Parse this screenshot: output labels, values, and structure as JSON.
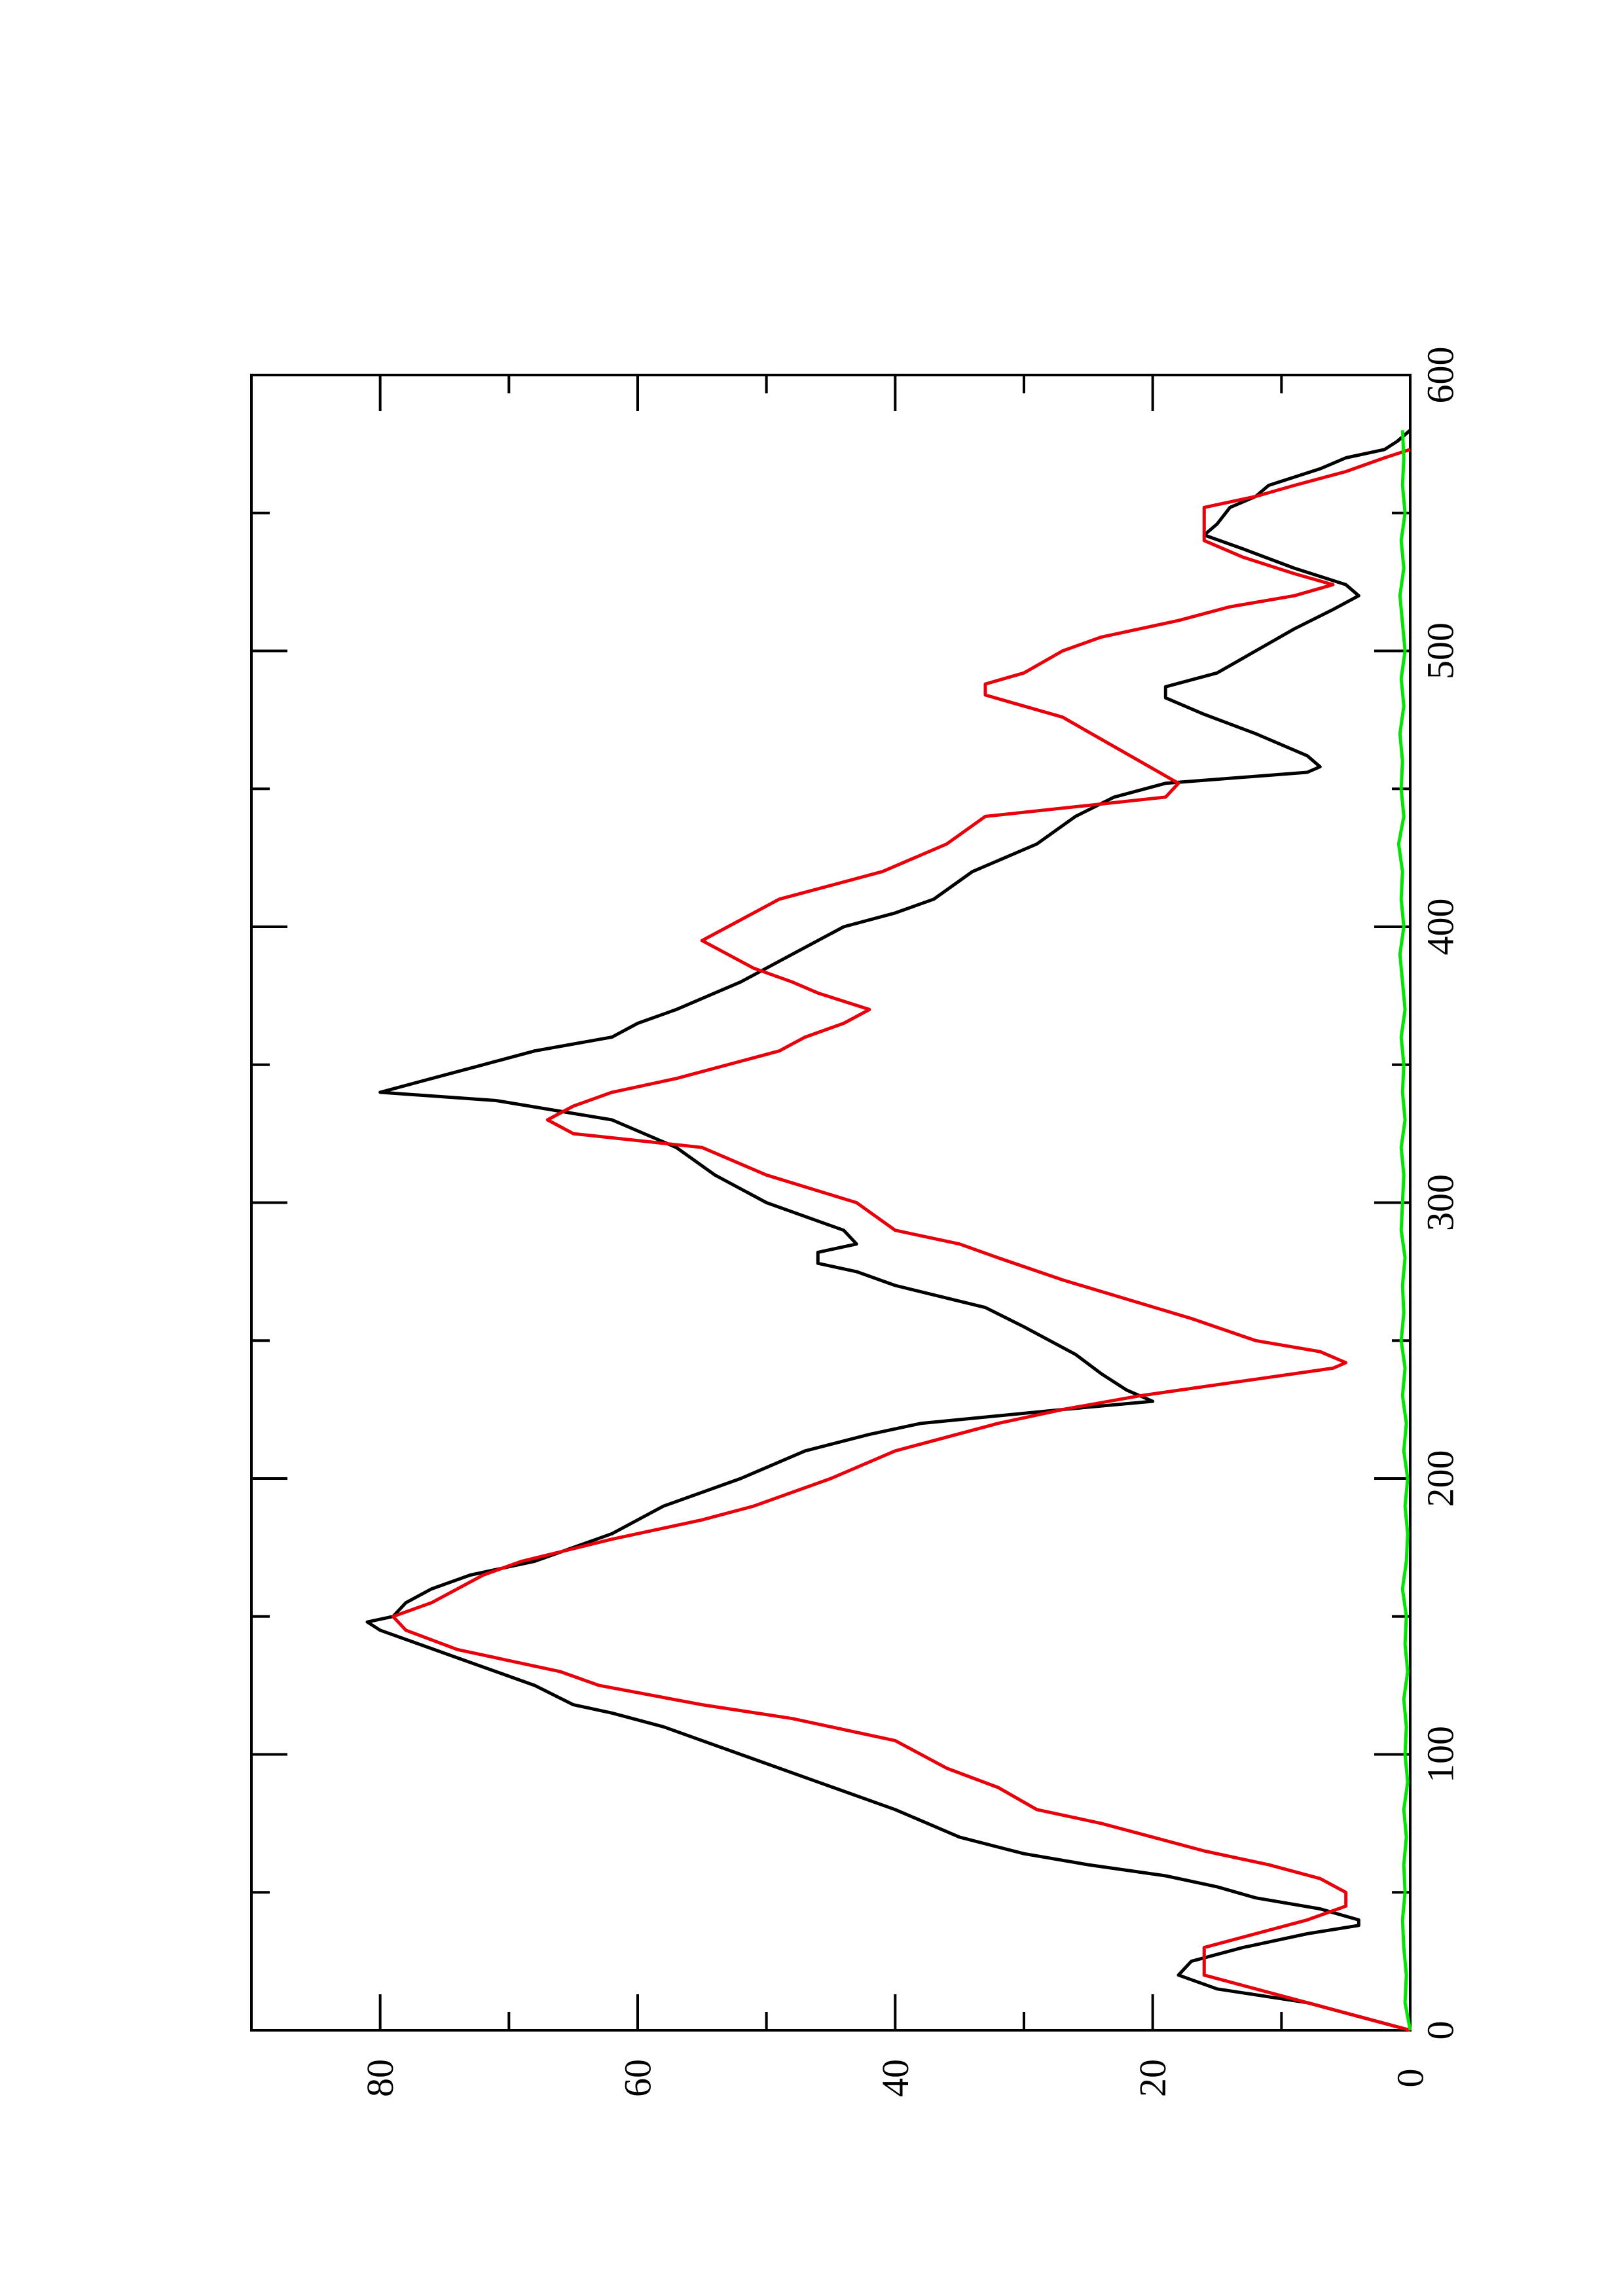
{
  "chart_data": {
    "type": "line",
    "orientation": "rotated 90° counter-clockwise (x axis runs bottom-to-top, y axis runs right-to-left)",
    "title": "",
    "xlabel": "",
    "ylabel": "",
    "xlim": [
      0,
      600
    ],
    "ylim": [
      0,
      90
    ],
    "x_ticks": [
      "0",
      "100",
      "200",
      "300",
      "400",
      "500",
      "600"
    ],
    "y_ticks": [
      "0",
      "20",
      "40",
      "60",
      "80"
    ],
    "grid": false,
    "legend": "none",
    "series": [
      {
        "color": "#000000",
        "style": "solid",
        "points": [
          [
            0,
            0
          ],
          [
            5,
            4
          ],
          [
            10,
            8
          ],
          [
            15,
            15
          ],
          [
            20,
            18
          ],
          [
            25,
            17
          ],
          [
            30,
            13
          ],
          [
            35,
            8
          ],
          [
            38,
            4
          ],
          [
            40,
            4
          ],
          [
            44,
            7
          ],
          [
            48,
            12
          ],
          [
            52,
            15
          ],
          [
            56,
            19
          ],
          [
            60,
            25
          ],
          [
            64,
            30
          ],
          [
            70,
            35
          ],
          [
            80,
            40
          ],
          [
            90,
            46
          ],
          [
            100,
            52
          ],
          [
            110,
            58
          ],
          [
            115,
            62
          ],
          [
            118,
            65
          ],
          [
            125,
            68
          ],
          [
            135,
            74
          ],
          [
            140,
            77
          ],
          [
            145,
            80
          ],
          [
            148,
            81
          ],
          [
            150,
            79
          ],
          [
            155,
            78
          ],
          [
            160,
            76
          ],
          [
            165,
            73
          ],
          [
            170,
            68
          ],
          [
            175,
            65
          ],
          [
            180,
            62
          ],
          [
            190,
            58
          ],
          [
            200,
            52
          ],
          [
            210,
            47
          ],
          [
            216,
            42
          ],
          [
            220,
            38
          ],
          [
            225,
            27
          ],
          [
            228,
            20
          ],
          [
            232,
            22
          ],
          [
            238,
            24
          ],
          [
            245,
            26
          ],
          [
            255,
            30
          ],
          [
            262,
            33
          ],
          [
            270,
            40
          ],
          [
            275,
            43
          ],
          [
            278,
            46
          ],
          [
            282,
            46
          ],
          [
            285,
            43
          ],
          [
            290,
            44
          ],
          [
            300,
            50
          ],
          [
            310,
            54
          ],
          [
            320,
            57
          ],
          [
            330,
            62
          ],
          [
            337,
            71
          ],
          [
            340,
            80
          ],
          [
            345,
            76
          ],
          [
            350,
            72
          ],
          [
            355,
            68
          ],
          [
            360,
            62
          ],
          [
            365,
            60
          ],
          [
            370,
            57
          ],
          [
            380,
            52
          ],
          [
            390,
            48
          ],
          [
            400,
            44
          ],
          [
            405,
            40
          ],
          [
            410,
            37
          ],
          [
            420,
            34
          ],
          [
            430,
            29
          ],
          [
            440,
            26
          ],
          [
            447,
            23
          ],
          [
            452,
            19
          ],
          [
            456,
            8
          ],
          [
            458,
            7
          ],
          [
            462,
            8
          ],
          [
            470,
            12
          ],
          [
            477,
            16
          ],
          [
            483,
            19
          ],
          [
            487,
            19
          ],
          [
            492,
            15
          ],
          [
            500,
            12
          ],
          [
            508,
            9
          ],
          [
            515,
            6
          ],
          [
            520,
            4
          ],
          [
            524,
            5
          ],
          [
            530,
            9
          ],
          [
            537,
            13
          ],
          [
            542,
            16
          ],
          [
            546,
            15
          ],
          [
            552,
            14
          ],
          [
            556,
            12
          ],
          [
            560,
            11
          ],
          [
            566,
            7
          ],
          [
            570,
            5
          ],
          [
            573,
            2
          ],
          [
            576,
            1
          ],
          [
            580,
            0
          ]
        ]
      },
      {
        "color": "#e8000b",
        "style": "solid",
        "points": [
          [
            0,
            0
          ],
          [
            5,
            4
          ],
          [
            10,
            8
          ],
          [
            15,
            12
          ],
          [
            20,
            16
          ],
          [
            25,
            16
          ],
          [
            30,
            16
          ],
          [
            35,
            12
          ],
          [
            40,
            8
          ],
          [
            45,
            5
          ],
          [
            50,
            5
          ],
          [
            55,
            7
          ],
          [
            60,
            11
          ],
          [
            65,
            16
          ],
          [
            70,
            20
          ],
          [
            75,
            24
          ],
          [
            80,
            29
          ],
          [
            88,
            32
          ],
          [
            95,
            36
          ],
          [
            105,
            40
          ],
          [
            113,
            48
          ],
          [
            118,
            55
          ],
          [
            125,
            63
          ],
          [
            130,
            66
          ],
          [
            138,
            74
          ],
          [
            145,
            78
          ],
          [
            150,
            79
          ],
          [
            155,
            76
          ],
          [
            165,
            72
          ],
          [
            170,
            69
          ],
          [
            178,
            62
          ],
          [
            185,
            55
          ],
          [
            190,
            51
          ],
          [
            200,
            45
          ],
          [
            210,
            40
          ],
          [
            220,
            32
          ],
          [
            225,
            27
          ],
          [
            230,
            21
          ],
          [
            236,
            12
          ],
          [
            240,
            6
          ],
          [
            242,
            5
          ],
          [
            246,
            7
          ],
          [
            250,
            12
          ],
          [
            258,
            17
          ],
          [
            265,
            22
          ],
          [
            272,
            27
          ],
          [
            280,
            32
          ],
          [
            285,
            35
          ],
          [
            290,
            40
          ],
          [
            300,
            43
          ],
          [
            310,
            50
          ],
          [
            320,
            55
          ],
          [
            325,
            65
          ],
          [
            330,
            67
          ],
          [
            335,
            65
          ],
          [
            340,
            62
          ],
          [
            345,
            57
          ],
          [
            355,
            49
          ],
          [
            360,
            47
          ],
          [
            365,
            44
          ],
          [
            370,
            42
          ],
          [
            376,
            46
          ],
          [
            380,
            48
          ],
          [
            385,
            51
          ],
          [
            395,
            55
          ],
          [
            400,
            53
          ],
          [
            410,
            49
          ],
          [
            415,
            45
          ],
          [
            420,
            41
          ],
          [
            430,
            36
          ],
          [
            440,
            33
          ],
          [
            447,
            19
          ],
          [
            452,
            18
          ],
          [
            460,
            21
          ],
          [
            468,
            24
          ],
          [
            476,
            27
          ],
          [
            484,
            33
          ],
          [
            488,
            33
          ],
          [
            492,
            30
          ],
          [
            500,
            27
          ],
          [
            505,
            24
          ],
          [
            511,
            18
          ],
          [
            516,
            14
          ],
          [
            520,
            9
          ],
          [
            524,
            6
          ],
          [
            528,
            9
          ],
          [
            534,
            13
          ],
          [
            540,
            16
          ],
          [
            546,
            16
          ],
          [
            552,
            16
          ],
          [
            556,
            12
          ],
          [
            560,
            9
          ],
          [
            565,
            5
          ],
          [
            570,
            2
          ],
          [
            573,
            0
          ]
        ]
      },
      {
        "color": "#00e600",
        "style": "solid",
        "points": [
          [
            0,
            0
          ],
          [
            10,
            0.4
          ],
          [
            20,
            0.3
          ],
          [
            30,
            0.5
          ],
          [
            40,
            0.6
          ],
          [
            50,
            0.4
          ],
          [
            60,
            0.5
          ],
          [
            70,
            0.3
          ],
          [
            80,
            0.5
          ],
          [
            90,
            0.2
          ],
          [
            100,
            0.4
          ],
          [
            110,
            0.3
          ],
          [
            120,
            0.5
          ],
          [
            130,
            0.2
          ],
          [
            140,
            0.4
          ],
          [
            150,
            0.3
          ],
          [
            160,
            0.6
          ],
          [
            170,
            0.3
          ],
          [
            180,
            0.2
          ],
          [
            190,
            0.4
          ],
          [
            200,
            0.2
          ],
          [
            210,
            0.5
          ],
          [
            220,
            0.3
          ],
          [
            230,
            0.6
          ],
          [
            240,
            0.4
          ],
          [
            250,
            0.7
          ],
          [
            260,
            0.5
          ],
          [
            270,
            0.6
          ],
          [
            280,
            0.4
          ],
          [
            290,
            0.7
          ],
          [
            300,
            0.6
          ],
          [
            310,
            0.5
          ],
          [
            320,
            0.7
          ],
          [
            330,
            0.4
          ],
          [
            340,
            0.6
          ],
          [
            350,
            0.5
          ],
          [
            360,
            0.7
          ],
          [
            370,
            0.4
          ],
          [
            380,
            0.6
          ],
          [
            390,
            0.8
          ],
          [
            400,
            0.5
          ],
          [
            410,
            0.7
          ],
          [
            420,
            0.6
          ],
          [
            430,
            0.9
          ],
          [
            440,
            0.5
          ],
          [
            450,
            0.7
          ],
          [
            460,
            0.6
          ],
          [
            470,
            0.8
          ],
          [
            480,
            0.5
          ],
          [
            490,
            0.7
          ],
          [
            500,
            0.4
          ],
          [
            510,
            0.6
          ],
          [
            520,
            0.8
          ],
          [
            530,
            0.5
          ],
          [
            540,
            0.7
          ],
          [
            550,
            0.4
          ],
          [
            560,
            0.6
          ],
          [
            570,
            0.5
          ],
          [
            580,
            0.6
          ]
        ]
      }
    ]
  }
}
